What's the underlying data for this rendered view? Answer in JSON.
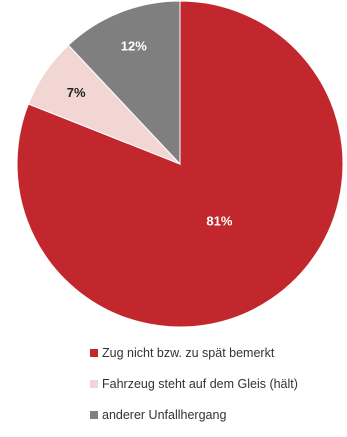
{
  "chart_data": {
    "type": "pie",
    "title": "",
    "start_angle_deg": 0,
    "direction": "clockwise",
    "slices": [
      {
        "label": "Zug nicht bzw. zu spät bemerkt",
        "value": 81,
        "display": "81%",
        "color": "#c1272d",
        "label_color": "#ffffff"
      },
      {
        "label": "Fahrzeug steht auf dem Gleis (hält)",
        "value": 7,
        "display": "7%",
        "color": "#f2d6d4",
        "label_color": "#222222"
      },
      {
        "label": "anderer Unfallhergang",
        "value": 12,
        "display": "12%",
        "color": "#7f7f7f",
        "label_color": "#ffffff"
      }
    ],
    "legend_position": "bottom"
  }
}
